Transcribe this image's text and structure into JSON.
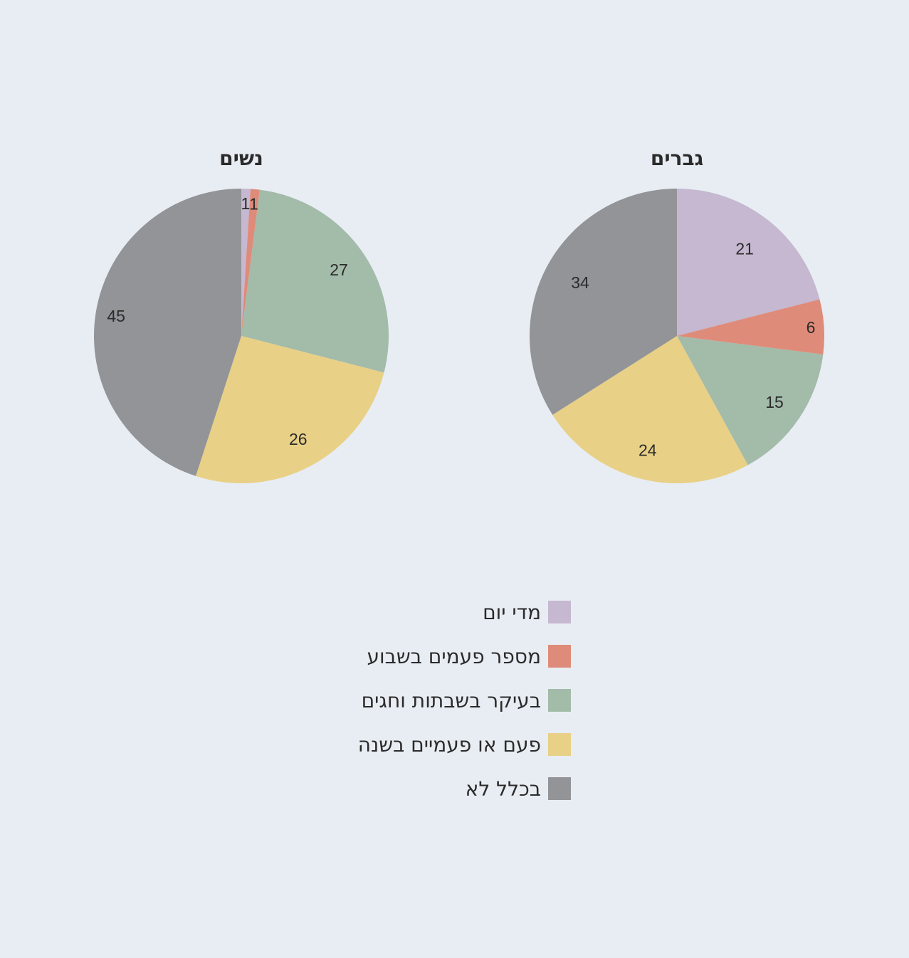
{
  "chart_data": [
    {
      "type": "pie",
      "title": "גברים",
      "categories": [
        "מדי יום",
        "מספר פעמים בשבוע",
        "בעיקר בשבתות וחגים",
        "פעם או פעמיים בשנה",
        "בכלל לא"
      ],
      "values": [
        21,
        6,
        15,
        24,
        34
      ]
    },
    {
      "type": "pie",
      "title": "נשים",
      "categories": [
        "מדי יום",
        "מספר פעמים בשבוע",
        "בעיקר בשבתות וחגים",
        "פעם או פעמיים בשנה",
        "בכלל לא"
      ],
      "values": [
        1,
        1,
        27,
        26,
        45
      ]
    }
  ],
  "legend": {
    "placement": "bottom-center",
    "items": [
      {
        "label": "מדי יום",
        "color": "#c5b8d0"
      },
      {
        "label": "מספר פעמים בשבוע",
        "color": "#df8b79"
      },
      {
        "label": "בעיקר בשבתות וחגים",
        "color": "#a3bba9"
      },
      {
        "label": "פעם או פעמיים בשנה",
        "color": "#e8d086"
      },
      {
        "label": "בכלל לא",
        "color": "#939497"
      }
    ]
  }
}
